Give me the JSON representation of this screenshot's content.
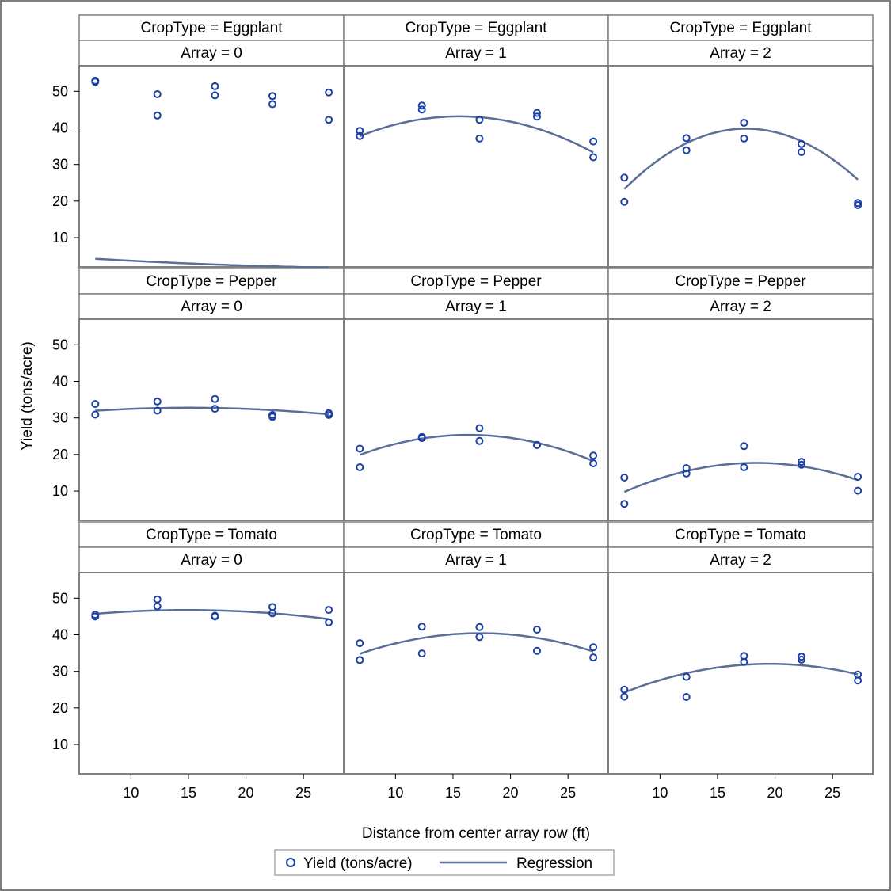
{
  "chart_data": {
    "type": "scatter",
    "xlabel": "Distance from center array row (ft)",
    "ylabel": "Yield (tons/acre)",
    "xlim": [
      5.5,
      28.5
    ],
    "ylim": [
      2,
      57
    ],
    "xticks": [
      10,
      15,
      20,
      25
    ],
    "yticks": [
      10,
      20,
      30,
      40,
      50
    ],
    "grid": false,
    "legend": {
      "position": "bottom-center",
      "items": [
        {
          "label": "Yield (tons/acre)",
          "kind": "marker"
        },
        {
          "label": "Regression",
          "kind": "line"
        }
      ]
    },
    "colors": {
      "marker": "#1c3fa6",
      "regression": "#5a6f96",
      "header_bg": "#ffffff",
      "border": "#7f7f7f"
    },
    "rows": [
      {
        "label": "CropType = Eggplant"
      },
      {
        "label": "CropType = Pepper"
      },
      {
        "label": "CropType = Tomato"
      }
    ],
    "columns": [
      {
        "label": "Array = 0"
      },
      {
        "label": "Array = 1"
      },
      {
        "label": "Array = 2"
      }
    ],
    "panels": [
      {
        "crop": "Eggplant",
        "array": 0,
        "x": [
          6.9,
          6.9,
          12.3,
          12.3,
          17.3,
          17.3,
          22.3,
          22.3,
          27.2,
          27.2
        ],
        "y": [
          52.9,
          52.6,
          49.2,
          43.4,
          51.4,
          48.9,
          48.7,
          46.5,
          49.7,
          42.2
        ],
        "fit": [
          5.64,
          -0.226,
          0.00314
        ]
      },
      {
        "crop": "Eggplant",
        "array": 1,
        "x": [
          6.9,
          6.9,
          12.3,
          12.3,
          17.3,
          17.3,
          22.3,
          22.3,
          27.2,
          27.2
        ],
        "y": [
          39.2,
          37.8,
          46.1,
          45.0,
          42.2,
          37.1,
          44.1,
          43.1,
          36.3,
          32.0
        ],
        "fit": [
          25.6,
          2.26,
          -0.0727
        ]
      },
      {
        "crop": "Eggplant",
        "array": 2,
        "x": [
          6.9,
          6.9,
          12.3,
          12.3,
          17.3,
          17.3,
          22.3,
          22.3,
          27.2,
          27.2
        ],
        "y": [
          26.4,
          19.8,
          37.2,
          33.9,
          41.4,
          37.1,
          35.6,
          33.4,
          19.5,
          18.9
        ],
        "fit": [
          -5.3,
          5.16,
          -0.1476
        ]
      },
      {
        "crop": "Pepper",
        "array": 0,
        "x": [
          6.9,
          6.9,
          12.3,
          12.3,
          17.3,
          17.3,
          22.3,
          22.3,
          27.2,
          27.2
        ],
        "y": [
          33.8,
          30.9,
          34.5,
          32.0,
          35.2,
          32.5,
          30.8,
          30.3,
          31.3,
          30.8
        ],
        "fit": [
          30.0,
          0.37,
          -0.0123
        ]
      },
      {
        "crop": "Pepper",
        "array": 1,
        "x": [
          6.9,
          6.9,
          12.3,
          12.3,
          17.3,
          17.3,
          22.3,
          22.3,
          27.2,
          27.2
        ],
        "y": [
          21.6,
          16.5,
          24.8,
          24.5,
          27.2,
          23.7,
          22.6,
          22.6,
          19.7,
          17.6
        ],
        "fit": [
          9.0,
          2.0,
          -0.0611
        ]
      },
      {
        "crop": "Pepper",
        "array": 2,
        "x": [
          6.9,
          6.9,
          12.3,
          12.3,
          17.3,
          17.3,
          22.3,
          22.3,
          27.2,
          27.2
        ],
        "y": [
          13.7,
          6.5,
          16.3,
          14.8,
          22.3,
          16.5,
          18.0,
          17.2,
          13.9,
          10.1
        ],
        "fit": [
          -2.7,
          2.22,
          -0.0604
        ]
      },
      {
        "crop": "Tomato",
        "array": 0,
        "x": [
          6.9,
          6.9,
          12.3,
          12.3,
          17.3,
          17.3,
          22.3,
          22.3,
          27.2,
          27.2
        ],
        "y": [
          45.5,
          45.0,
          49.7,
          47.8,
          45.2,
          45.0,
          47.6,
          45.9,
          46.8,
          43.4
        ],
        "fit": [
          43.16,
          0.485,
          -0.0163
        ]
      },
      {
        "crop": "Tomato",
        "array": 1,
        "x": [
          6.9,
          6.9,
          12.3,
          12.3,
          17.3,
          17.3,
          22.3,
          22.3,
          27.2,
          27.2
        ],
        "y": [
          37.7,
          33.1,
          42.2,
          34.9,
          42.1,
          39.4,
          41.4,
          35.6,
          36.6,
          33.8
        ],
        "fit": [
          24.9,
          1.79,
          -0.0516
        ]
      },
      {
        "crop": "Tomato",
        "array": 2,
        "x": [
          6.9,
          6.9,
          12.3,
          12.3,
          17.3,
          17.3,
          22.3,
          22.3,
          27.2,
          27.2
        ],
        "y": [
          25.0,
          23.1,
          28.5,
          23.0,
          34.2,
          32.6,
          34.0,
          33.2,
          29.1,
          27.5
        ],
        "fit": [
          13.4,
          1.91,
          -0.0489
        ]
      }
    ]
  }
}
